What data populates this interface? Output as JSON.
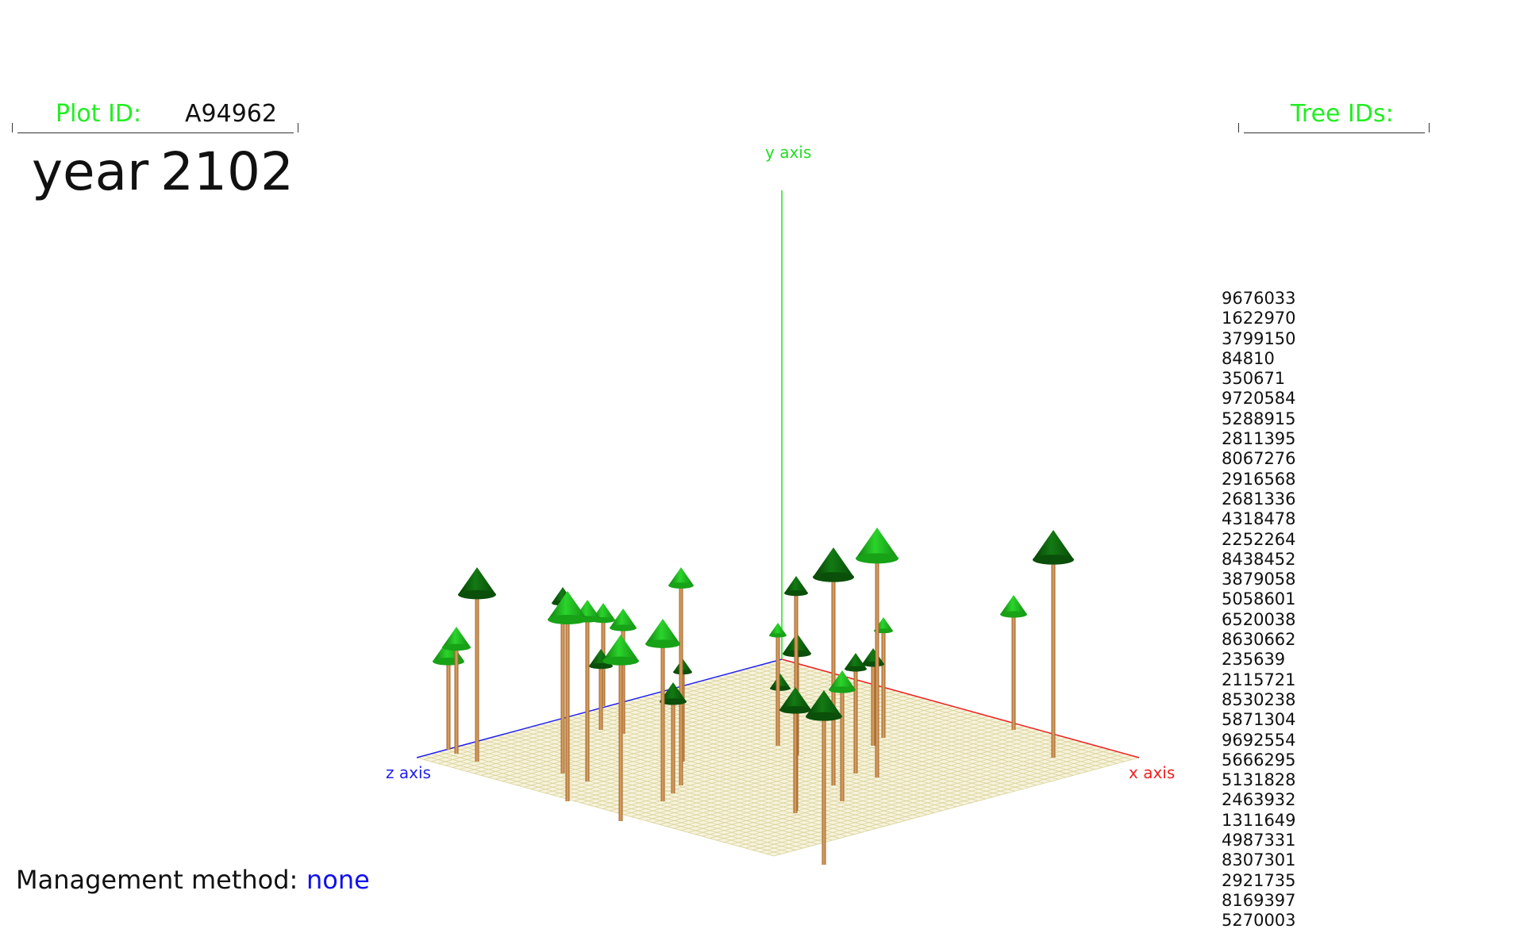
{
  "plot_id": {
    "label": "Plot ID:",
    "value": "A94962"
  },
  "year": {
    "label": "year",
    "value": "2102"
  },
  "tree_ids": {
    "label": "Tree IDs:",
    "items": [
      "9676033",
      "1622970",
      "3799150",
      "84810",
      "350671",
      "9720584",
      "5288915",
      "2811395",
      "8067276",
      "2916568",
      "2681336",
      "4318478",
      "2252264",
      "8438452",
      "3879058",
      "5058601",
      "6520038",
      "8630662",
      "235639",
      "2115721",
      "8530238",
      "5871304",
      "9692554",
      "5666295",
      "5131828",
      "2463932",
      "1311649",
      "4987331",
      "8307301",
      "2921735",
      "8169397",
      "5270003"
    ]
  },
  "management": {
    "label": "Management method:",
    "value": "none"
  },
  "axes": {
    "x": "x axis",
    "y": "y axis",
    "z": "z axis"
  },
  "colors": {
    "label_green": "#22ee22",
    "value_blue": "#1010ee",
    "x_axis": "#ee2222",
    "y_axis": "#22dd22",
    "z_axis": "#2222ee",
    "ground": "#f7f3dc",
    "grid": "#d9d29a",
    "trunk": "#c8864a",
    "crown_light": "#1fb01f",
    "crown_dark": "#0b5a0b"
  }
}
